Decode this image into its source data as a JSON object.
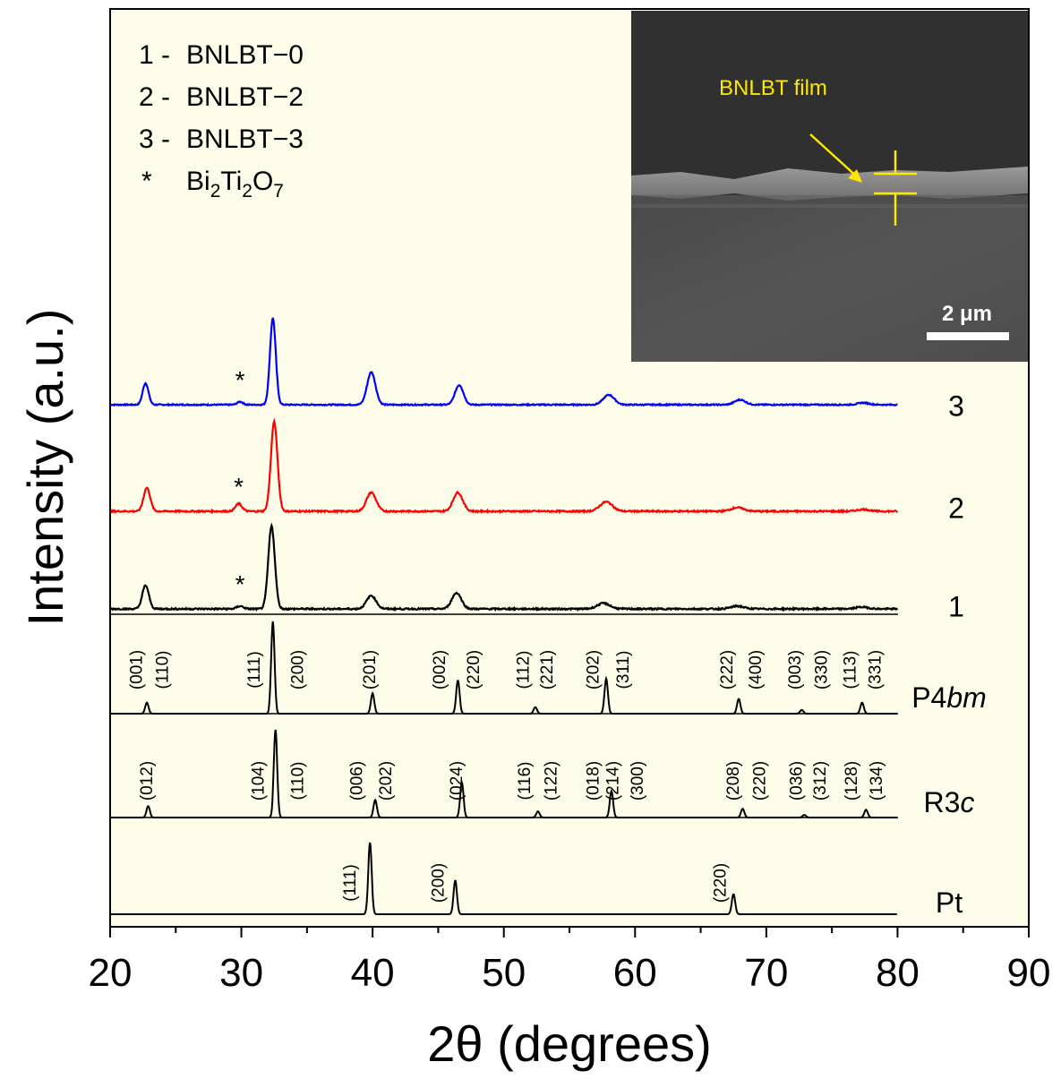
{
  "chart_data": {
    "type": "line",
    "xlabel": "2θ (degrees)",
    "ylabel": "Intensity (a.u.)",
    "xlim": [
      20,
      90
    ],
    "x_ticks": [
      "20",
      "30",
      "40",
      "50",
      "60",
      "70",
      "80",
      "90"
    ],
    "plot_background": "#fefde9",
    "legend": [
      {
        "key": "1 -",
        "name": "BNLBT−0"
      },
      {
        "key": "2 -",
        "name": "BNLBT−2"
      },
      {
        "key": "3 -",
        "name": "BNLBT−3"
      },
      {
        "key": "*",
        "name": "Bi2Ti2O7",
        "formula": [
          [
            "Bi",
            ""
          ],
          [
            "2",
            "sub"
          ],
          [
            "Ti",
            ""
          ],
          [
            "2",
            "sub"
          ],
          [
            "O",
            ""
          ],
          [
            "7",
            "sub"
          ]
        ]
      }
    ],
    "series": [
      {
        "name": "3",
        "color": "#0000ff",
        "noise": 0.6,
        "impurity_marker": "*",
        "impurity_x": 29.9,
        "peaks": [
          [
            22.7,
            22
          ],
          [
            29.9,
            3
          ],
          [
            32.4,
            88
          ],
          [
            39.9,
            33
          ],
          [
            46.6,
            20
          ],
          [
            58.0,
            10
          ],
          [
            68.0,
            5
          ],
          [
            77.4,
            2
          ]
        ]
      },
      {
        "name": "2",
        "color": "#ff0000",
        "noise": 0.8,
        "impurity_marker": "*",
        "impurity_x": 29.8,
        "peaks": [
          [
            22.8,
            25
          ],
          [
            29.8,
            8
          ],
          [
            32.5,
            95
          ],
          [
            39.9,
            20
          ],
          [
            46.5,
            20
          ],
          [
            57.8,
            10
          ],
          [
            67.8,
            4
          ],
          [
            77.4,
            2
          ]
        ]
      },
      {
        "name": "1",
        "color": "#000000",
        "noise": 0.8,
        "impurity_marker": "*",
        "impurity_x": 29.9,
        "peaks": [
          [
            22.7,
            25
          ],
          [
            29.9,
            3
          ],
          [
            32.3,
            88
          ],
          [
            39.9,
            14
          ],
          [
            46.4,
            17
          ],
          [
            57.6,
            6
          ],
          [
            67.8,
            3
          ],
          [
            77.3,
            2
          ]
        ]
      }
    ],
    "references": [
      {
        "name": "P4",
        "name_italic": "bm",
        "color": "#000000",
        "peaks": [
          [
            22.8,
            12
          ],
          [
            32.4,
            100
          ],
          [
            40.0,
            22
          ],
          [
            46.5,
            36
          ],
          [
            52.4,
            7
          ],
          [
            57.8,
            38
          ],
          [
            67.9,
            16
          ],
          [
            72.7,
            4
          ],
          [
            77.3,
            12
          ]
        ],
        "labels": [
          [
            "(001)",
            22.0
          ],
          [
            "(110)",
            24.0
          ],
          [
            "(111)",
            31.0
          ],
          [
            "(200)",
            34.3
          ],
          [
            "(201)",
            39.8
          ],
          [
            "(002)",
            45.1
          ],
          [
            "(220)",
            47.7
          ],
          [
            "(112)",
            51.5
          ],
          [
            "(221)",
            53.3
          ],
          [
            "(202)",
            56.8
          ],
          [
            "(311)",
            59.1
          ],
          [
            "(222)",
            67.0
          ],
          [
            "(400)",
            69.2
          ],
          [
            "(003)",
            72.2
          ],
          [
            "(330)",
            74.2
          ],
          [
            "(113)",
            76.4
          ],
          [
            "(331)",
            78.3
          ]
        ]
      },
      {
        "name": "R3",
        "name_italic": "c",
        "color": "#000000",
        "peaks": [
          [
            22.9,
            13
          ],
          [
            32.6,
            100
          ],
          [
            40.2,
            20
          ],
          [
            46.8,
            40
          ],
          [
            52.6,
            7
          ],
          [
            58.2,
            30
          ],
          [
            68.2,
            10
          ],
          [
            72.9,
            3
          ],
          [
            77.6,
            9
          ]
        ],
        "labels": [
          [
            "(012)",
            22.8
          ],
          [
            "(104)",
            31.3
          ],
          [
            "(110)",
            34.3
          ],
          [
            "(006)",
            38.8
          ],
          [
            "(202)",
            41.0
          ],
          [
            "(024)",
            46.4
          ],
          [
            "(116)",
            51.6
          ],
          [
            "(122)",
            53.6
          ],
          [
            "(018)",
            56.8
          ],
          [
            "(214)",
            58.3
          ],
          [
            "(300)",
            60.2
          ],
          [
            "(208)",
            67.5
          ],
          [
            "(220)",
            69.5
          ],
          [
            "(036)",
            72.3
          ],
          [
            "(312)",
            74.1
          ],
          [
            "(128)",
            76.5
          ],
          [
            "(134)",
            78.4
          ]
        ]
      },
      {
        "name": "Pt",
        "name_italic": "",
        "color": "#000000",
        "peaks": [
          [
            39.8,
            100
          ],
          [
            46.3,
            47
          ],
          [
            67.5,
            28
          ]
        ],
        "labels": [
          [
            "(111)",
            38.3
          ],
          [
            "(200)",
            45.0
          ],
          [
            "(220)",
            66.5
          ]
        ]
      }
    ],
    "inset": {
      "type": "SEM cross-section image",
      "annotation": "BNLBT film",
      "scale_bar": "2 μm",
      "annotation_color": "#ffe800"
    }
  }
}
